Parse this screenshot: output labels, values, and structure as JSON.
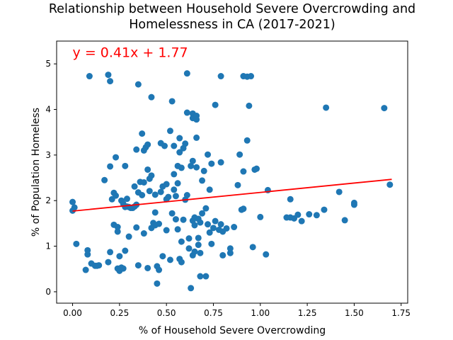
{
  "chart_data": {
    "type": "scatter",
    "title_lines": [
      "Relationship between Household Severe Overcrowding and",
      "Homelessness in CA (2017-2021)"
    ],
    "xlabel": "% of Household Severe Overcrowding",
    "ylabel": "% of Population Homeless",
    "xlim": [
      -0.085,
      1.785
    ],
    "ylim": [
      -0.25,
      5.5
    ],
    "xticks": [
      0.0,
      0.25,
      0.5,
      0.75,
      1.0,
      1.25,
      1.5,
      1.75
    ],
    "xtick_labels": [
      "0.00",
      "0.25",
      "0.50",
      "0.75",
      "1.00",
      "1.25",
      "1.50",
      "1.75"
    ],
    "yticks": [
      0,
      1,
      2,
      3,
      4,
      5
    ],
    "ytick_labels": [
      "0",
      "1",
      "2",
      "3",
      "4",
      "5"
    ],
    "regression": {
      "equation": "y = 0.41x + 1.77",
      "slope": 0.41,
      "intercept": 1.77,
      "x_range": [
        0.0,
        1.7
      ],
      "color": "#ff0000",
      "label_at": [
        0.0,
        5.15
      ]
    },
    "marker_color": "#1f77b4",
    "grid": false,
    "points": [
      [
        0.09,
        4.73
      ],
      [
        0.19,
        4.76
      ],
      [
        0.2,
        4.62
      ],
      [
        0.35,
        4.55
      ],
      [
        0.42,
        4.27
      ],
      [
        0.61,
        4.79
      ],
      [
        0.79,
        4.73
      ],
      [
        0.91,
        4.73
      ],
      [
        0.93,
        4.72
      ],
      [
        0.95,
        4.73
      ],
      [
        0.53,
        4.18
      ],
      [
        0.61,
        3.93
      ],
      [
        0.64,
        3.91
      ],
      [
        0.64,
        3.81
      ],
      [
        0.66,
        3.86
      ],
      [
        0.66,
        3.78
      ],
      [
        0.76,
        4.1
      ],
      [
        0.94,
        4.08
      ],
      [
        1.35,
        4.04
      ],
      [
        1.66,
        4.03
      ],
      [
        0.0,
        1.97
      ],
      [
        0.0,
        1.78
      ],
      [
        0.01,
        1.85
      ],
      [
        0.02,
        1.05
      ],
      [
        0.07,
        0.48
      ],
      [
        0.08,
        0.82
      ],
      [
        0.08,
        0.91
      ],
      [
        0.1,
        0.62
      ],
      [
        0.12,
        0.57
      ],
      [
        0.13,
        0.57
      ],
      [
        0.14,
        0.58
      ],
      [
        0.17,
        2.45
      ],
      [
        0.19,
        0.65
      ],
      [
        0.2,
        0.87
      ],
      [
        0.2,
        2.75
      ],
      [
        0.21,
        2.03
      ],
      [
        0.22,
        1.47
      ],
      [
        0.22,
        2.17
      ],
      [
        0.23,
        2.95
      ],
      [
        0.23,
        2.11
      ],
      [
        0.24,
        1.32
      ],
      [
        0.24,
        1.42
      ],
      [
        0.24,
        0.51
      ],
      [
        0.25,
        0.46
      ],
      [
        0.25,
        0.78
      ],
      [
        0.26,
        2.0
      ],
      [
        0.26,
        0.53
      ],
      [
        0.27,
        0.51
      ],
      [
        0.27,
        1.93
      ],
      [
        0.28,
        2.76
      ],
      [
        0.28,
        0.9
      ],
      [
        0.28,
        1.86
      ],
      [
        0.29,
        2.04
      ],
      [
        0.29,
        1.87
      ],
      [
        0.3,
        1.86
      ],
      [
        0.3,
        1.21
      ],
      [
        0.31,
        1.84
      ],
      [
        0.32,
        1.84
      ],
      [
        0.33,
        2.31
      ],
      [
        0.33,
        1.87
      ],
      [
        0.34,
        3.12
      ],
      [
        0.34,
        1.91
      ],
      [
        0.34,
        1.41
      ],
      [
        0.35,
        0.58
      ],
      [
        0.35,
        2.18
      ],
      [
        0.36,
        2.41
      ],
      [
        0.37,
        3.47
      ],
      [
        0.37,
        2.12
      ],
      [
        0.38,
        3.1
      ],
      [
        0.38,
        2.4
      ],
      [
        0.38,
        1.28
      ],
      [
        0.39,
        3.17
      ],
      [
        0.4,
        3.23
      ],
      [
        0.4,
        2.68
      ],
      [
        0.4,
        0.52
      ],
      [
        0.41,
        2.48
      ],
      [
        0.41,
        2.21
      ],
      [
        0.42,
        2.55
      ],
      [
        0.42,
        1.4
      ],
      [
        0.43,
        1.51
      ],
      [
        0.44,
        1.74
      ],
      [
        0.44,
        2.13
      ],
      [
        0.44,
        1.46
      ],
      [
        0.45,
        0.56
      ],
      [
        0.45,
        0.18
      ],
      [
        0.46,
        0.48
      ],
      [
        0.46,
        1.49
      ],
      [
        0.47,
        2.19
      ],
      [
        0.47,
        3.26
      ],
      [
        0.48,
        2.31
      ],
      [
        0.48,
        0.78
      ],
      [
        0.49,
        3.2
      ],
      [
        0.5,
        2.03
      ],
      [
        0.5,
        2.36
      ],
      [
        0.5,
        1.35
      ],
      [
        0.51,
        2.08
      ],
      [
        0.52,
        3.53
      ],
      [
        0.52,
        0.7
      ],
      [
        0.53,
        1.72
      ],
      [
        0.54,
        2.24
      ],
      [
        0.54,
        3.2
      ],
      [
        0.54,
        2.58
      ],
      [
        0.55,
        1.59
      ],
      [
        0.55,
        2.1
      ],
      [
        0.56,
        2.38
      ],
      [
        0.56,
        1.37
      ],
      [
        0.56,
        2.76
      ],
      [
        0.57,
        3.37
      ],
      [
        0.57,
        3.06
      ],
      [
        0.57,
        0.72
      ],
      [
        0.58,
        1.1
      ],
      [
        0.58,
        0.65
      ],
      [
        0.58,
        2.72
      ],
      [
        0.59,
        3.15
      ],
      [
        0.59,
        1.58
      ],
      [
        0.6,
        2.02
      ],
      [
        0.6,
        3.25
      ],
      [
        0.61,
        2.12
      ],
      [
        0.62,
        1.17
      ],
      [
        0.62,
        0.95
      ],
      [
        0.63,
        2.76
      ],
      [
        0.63,
        0.08
      ],
      [
        0.64,
        1.56
      ],
      [
        0.64,
        0.8
      ],
      [
        0.64,
        2.87
      ],
      [
        0.65,
        1.46
      ],
      [
        0.65,
        0.88
      ],
      [
        0.65,
        1.63
      ],
      [
        0.66,
        2.73
      ],
      [
        0.66,
        3.38
      ],
      [
        0.67,
        1.03
      ],
      [
        0.67,
        1.18
      ],
      [
        0.67,
        1.6
      ],
      [
        0.68,
        0.34
      ],
      [
        0.68,
        1.52
      ],
      [
        0.68,
        0.85
      ],
      [
        0.69,
        1.72
      ],
      [
        0.69,
        2.44
      ],
      [
        0.7,
        2.65
      ],
      [
        0.71,
        1.83
      ],
      [
        0.71,
        0.34
      ],
      [
        0.72,
        1.48
      ],
      [
        0.72,
        3.01
      ],
      [
        0.73,
        2.24
      ],
      [
        0.73,
        1.3
      ],
      [
        0.74,
        1.05
      ],
      [
        0.74,
        2.81
      ],
      [
        0.75,
        1.4
      ],
      [
        0.76,
        1.55
      ],
      [
        0.78,
        1.36
      ],
      [
        0.79,
        2.84
      ],
      [
        0.79,
        1.48
      ],
      [
        0.8,
        1.32
      ],
      [
        0.8,
        0.8
      ],
      [
        0.82,
        1.39
      ],
      [
        0.84,
        0.85
      ],
      [
        0.84,
        0.95
      ],
      [
        0.86,
        1.42
      ],
      [
        0.88,
        2.34
      ],
      [
        0.89,
        3.01
      ],
      [
        0.9,
        1.8
      ],
      [
        0.91,
        2.64
      ],
      [
        0.91,
        1.82
      ],
      [
        0.93,
        3.32
      ],
      [
        0.96,
        0.98
      ],
      [
        0.97,
        2.68
      ],
      [
        0.98,
        2.7
      ],
      [
        1.0,
        1.64
      ],
      [
        1.03,
        0.82
      ],
      [
        1.04,
        2.23
      ],
      [
        1.14,
        1.63
      ],
      [
        1.16,
        1.63
      ],
      [
        1.16,
        2.03
      ],
      [
        1.18,
        1.61
      ],
      [
        1.2,
        1.69
      ],
      [
        1.22,
        1.55
      ],
      [
        1.26,
        1.7
      ],
      [
        1.3,
        1.68
      ],
      [
        1.34,
        1.8
      ],
      [
        1.42,
        2.19
      ],
      [
        1.45,
        1.57
      ],
      [
        1.5,
        1.91
      ],
      [
        1.5,
        1.95
      ],
      [
        1.69,
        2.35
      ]
    ]
  }
}
